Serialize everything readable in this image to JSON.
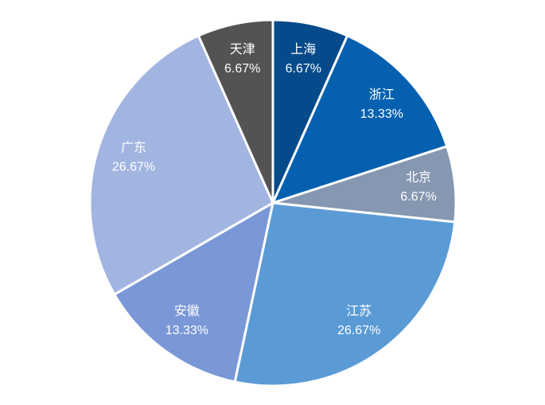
{
  "chart_data": {
    "type": "pie",
    "categories": [
      "上海",
      "浙江",
      "北京",
      "江苏",
      "安徽",
      "广东",
      "天津"
    ],
    "values": [
      6.67,
      13.33,
      6.67,
      26.67,
      13.33,
      26.67,
      6.67
    ],
    "value_labels": [
      "6.67%",
      "13.33%",
      "6.67%",
      "26.67%",
      "13.33%",
      "26.67%",
      "6.67%"
    ],
    "colors": [
      "#054a8a",
      "#0561b0",
      "#8597b1",
      "#5b9bd5",
      "#7a98d7",
      "#a2b5e1",
      "#535353"
    ]
  }
}
